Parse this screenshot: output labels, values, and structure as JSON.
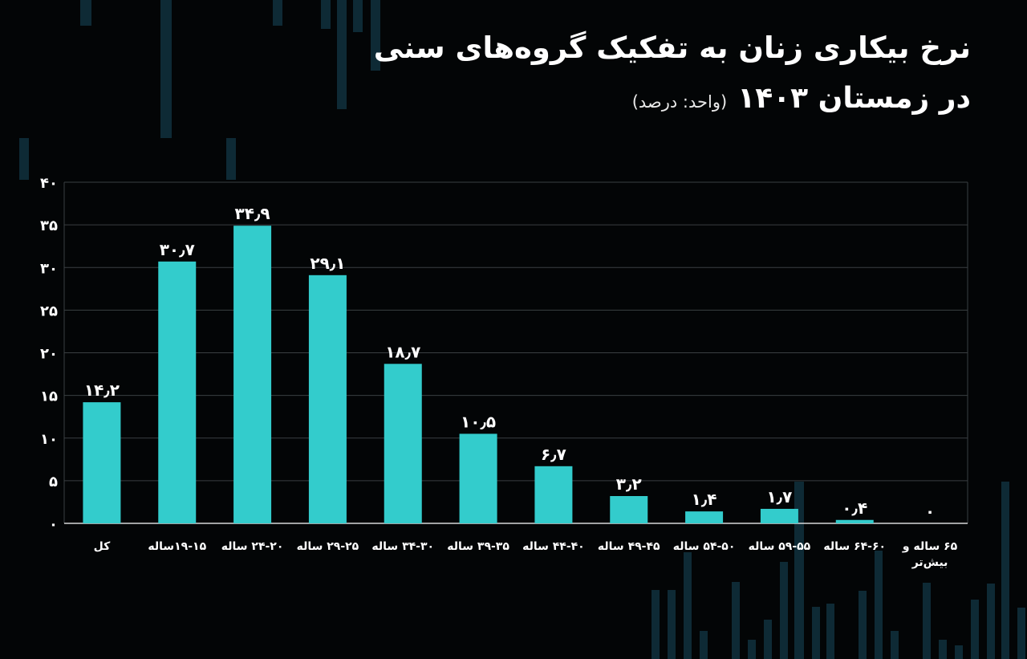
{
  "chart_data": {
    "type": "bar",
    "title": "نرخ بیکاری زنان به تفکیک گروه‌های سنی",
    "subtitle": "در زمستان ۱۴۰۳",
    "unit_note": "(واحد: درصد)",
    "categories": [
      [
        "کل"
      ],
      [
        "۱۹-۱۵ساله"
      ],
      [
        "۲۴-۲۰ ساله"
      ],
      [
        "۲۹-۲۵ ساله"
      ],
      [
        "۳۴-۳۰ ساله"
      ],
      [
        "۳۹-۳۵ ساله"
      ],
      [
        "۴۴-۴۰ ساله"
      ],
      [
        "۴۹-۴۵ ساله"
      ],
      [
        "۵۴-۵۰ ساله"
      ],
      [
        "۵۹-۵۵ ساله"
      ],
      [
        "۶۴-۶۰ ساله"
      ],
      [
        "۶۵ ساله و",
        "بیش‌تر"
      ]
    ],
    "values": [
      14.2,
      30.7,
      34.9,
      29.1,
      18.7,
      10.5,
      6.7,
      3.2,
      1.4,
      1.7,
      0.4,
      0
    ],
    "value_labels": [
      "۱۴٫۲",
      "۳۰٫۷",
      "۳۴٫۹",
      "۲۹٫۱",
      "۱۸٫۷",
      "۱۰٫۵",
      "۶٫۷",
      "۳٫۲",
      "۱٫۴",
      "۱٫۷",
      "۰٫۴",
      "۰"
    ],
    "y_ticks": [
      0,
      5,
      10,
      15,
      20,
      25,
      30,
      35,
      40
    ],
    "y_tick_labels": [
      "۰",
      "۵",
      "۱۰",
      "۱۵",
      "۲۰",
      "۲۵",
      "۳۰",
      "۳۵",
      "۴۰"
    ],
    "ylim": [
      0,
      40
    ],
    "grid": true,
    "legend": "none",
    "colors": {
      "bar": "#33cccc",
      "background": "#030506",
      "grid": "#3a3f42",
      "text": "#ffffff",
      "decoration": "#0e2a35"
    }
  }
}
